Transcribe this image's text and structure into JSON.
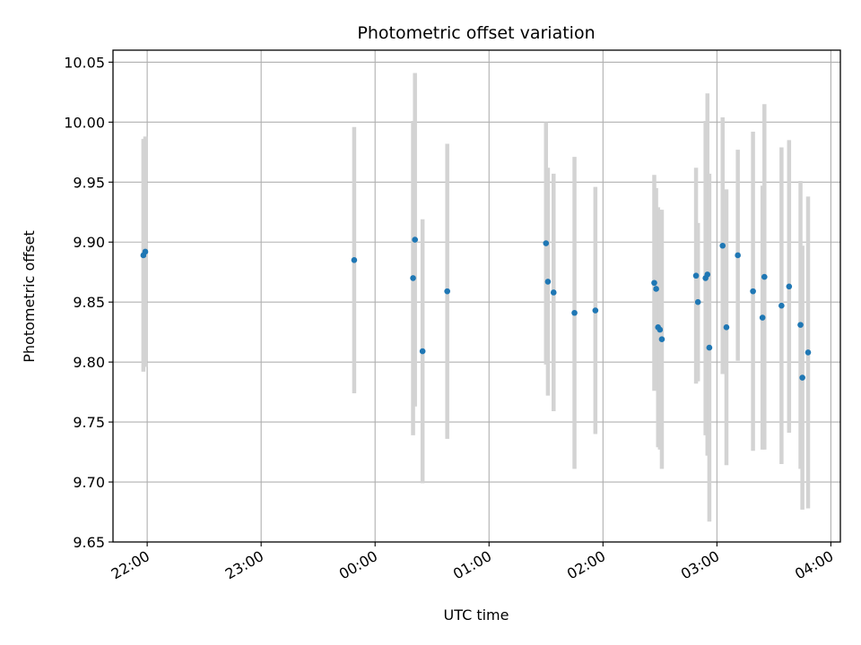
{
  "chart_data": {
    "type": "scatter",
    "title": "Photometric offset variation",
    "xlabel": "UTC time",
    "ylabel": "Photometric offset",
    "x_axis_type": "time",
    "xlim": [
      "21:42",
      "04:05"
    ],
    "ylim": [
      9.65,
      10.06
    ],
    "grid": true,
    "x_ticks": [
      {
        "value": "22:00",
        "label": "22:00"
      },
      {
        "value": "23:00",
        "label": "23:00"
      },
      {
        "value": "24:00",
        "label": "00:00"
      },
      {
        "value": "25:00",
        "label": "01:00"
      },
      {
        "value": "26:00",
        "label": "02:00"
      },
      {
        "value": "27:00",
        "label": "03:00"
      },
      {
        "value": "28:00",
        "label": "04:00"
      }
    ],
    "y_ticks": [
      {
        "value": 9.65,
        "label": "9.65"
      },
      {
        "value": 9.7,
        "label": "9.70"
      },
      {
        "value": 9.75,
        "label": "9.75"
      },
      {
        "value": 9.8,
        "label": "9.80"
      },
      {
        "value": 9.85,
        "label": "9.85"
      },
      {
        "value": 9.9,
        "label": "9.90"
      },
      {
        "value": 9.95,
        "label": "9.95"
      },
      {
        "value": 10.0,
        "label": "10.00"
      },
      {
        "value": 10.05,
        "label": "10.05"
      }
    ],
    "colors": {
      "point": "#1f77b4",
      "errorbar": "#d3d3d3",
      "grid": "#b0b0b0"
    },
    "points": [
      {
        "t": "21:58",
        "y": 9.889,
        "err": 0.097
      },
      {
        "t": "21:59",
        "y": 9.892,
        "err": 0.096
      },
      {
        "t": "23:49",
        "y": 9.885,
        "err": 0.111
      },
      {
        "t": "00:20",
        "y": 9.87,
        "err": 0.131
      },
      {
        "t": "00:21",
        "y": 9.902,
        "err": 0.139
      },
      {
        "t": "00:25",
        "y": 9.809,
        "err": 0.11
      },
      {
        "t": "00:38",
        "y": 9.859,
        "err": 0.123
      },
      {
        "t": "01:30",
        "y": 9.899,
        "err": 0.101
      },
      {
        "t": "01:31",
        "y": 9.867,
        "err": 0.095
      },
      {
        "t": "01:34",
        "y": 9.858,
        "err": 0.099
      },
      {
        "t": "01:45",
        "y": 9.841,
        "err": 0.13
      },
      {
        "t": "01:56",
        "y": 9.843,
        "err": 0.103
      },
      {
        "t": "02:27",
        "y": 9.866,
        "err": 0.09
      },
      {
        "t": "02:28",
        "y": 9.861,
        "err": 0.084
      },
      {
        "t": "02:29",
        "y": 9.829,
        "err": 0.1
      },
      {
        "t": "02:30",
        "y": 9.827,
        "err": 0.1
      },
      {
        "t": "02:31",
        "y": 9.819,
        "err": 0.108
      },
      {
        "t": "02:49",
        "y": 9.872,
        "err": 0.09
      },
      {
        "t": "02:50",
        "y": 9.85,
        "err": 0.066
      },
      {
        "t": "02:54",
        "y": 9.87,
        "err": 0.131
      },
      {
        "t": "02:55",
        "y": 9.873,
        "err": 0.151
      },
      {
        "t": "02:56",
        "y": 9.812,
        "err": 0.145
      },
      {
        "t": "03:03",
        "y": 9.897,
        "err": 0.107
      },
      {
        "t": "03:05",
        "y": 9.829,
        "err": 0.115
      },
      {
        "t": "03:11",
        "y": 9.889,
        "err": 0.088
      },
      {
        "t": "03:19",
        "y": 9.859,
        "err": 0.133
      },
      {
        "t": "03:24",
        "y": 9.837,
        "err": 0.11
      },
      {
        "t": "03:25",
        "y": 9.871,
        "err": 0.144
      },
      {
        "t": "03:34",
        "y": 9.847,
        "err": 0.132
      },
      {
        "t": "03:38",
        "y": 9.863,
        "err": 0.122
      },
      {
        "t": "03:44",
        "y": 9.831,
        "err": 0.12
      },
      {
        "t": "03:45",
        "y": 9.787,
        "err": 0.11
      },
      {
        "t": "03:48",
        "y": 9.808,
        "err": 0.13
      }
    ]
  }
}
